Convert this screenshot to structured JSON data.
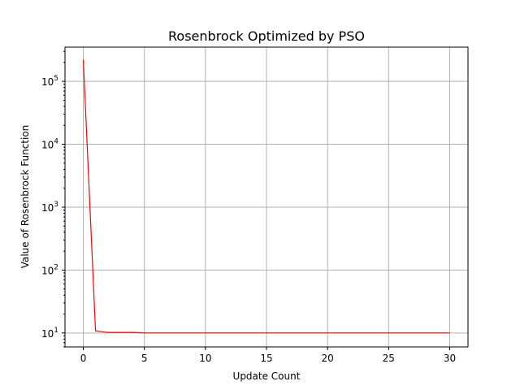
{
  "chart_data": {
    "type": "line",
    "title": "Rosenbrock Optimized by PSO",
    "xlabel": "Update Count",
    "ylabel": "Value of Rosenbrock Function",
    "yscale": "log",
    "grid": true,
    "xlim": [
      -1.5,
      31.5
    ],
    "ylim": [
      6,
      350000
    ],
    "xticks": [
      0,
      5,
      10,
      15,
      20,
      25,
      30
    ],
    "yticks": [
      {
        "value": 10,
        "base": "10",
        "exp": "1"
      },
      {
        "value": 100,
        "base": "10",
        "exp": "2"
      },
      {
        "value": 1000,
        "base": "10",
        "exp": "3"
      },
      {
        "value": 10000,
        "base": "10",
        "exp": "4"
      },
      {
        "value": 100000,
        "base": "10",
        "exp": "5"
      }
    ],
    "series": [
      {
        "color": "#ff0000",
        "x": [
          0,
          1,
          2,
          3,
          4,
          5,
          6,
          7,
          8,
          9,
          10,
          11,
          12,
          13,
          14,
          15,
          16,
          17,
          18,
          19,
          20,
          21,
          22,
          23,
          24,
          25,
          26,
          27,
          28,
          29,
          30
        ],
        "y": [
          220000,
          10.8,
          10.2,
          10.2,
          10.2,
          10.0,
          10.0,
          10.0,
          10.0,
          10.0,
          10.0,
          10.0,
          10.0,
          10.0,
          10.0,
          10.0,
          10.0,
          10.0,
          10.0,
          10.0,
          10.0,
          10.0,
          10.0,
          10.0,
          10.0,
          10.0,
          10.0,
          10.0,
          10.0,
          10.0,
          10.0
        ]
      }
    ]
  }
}
